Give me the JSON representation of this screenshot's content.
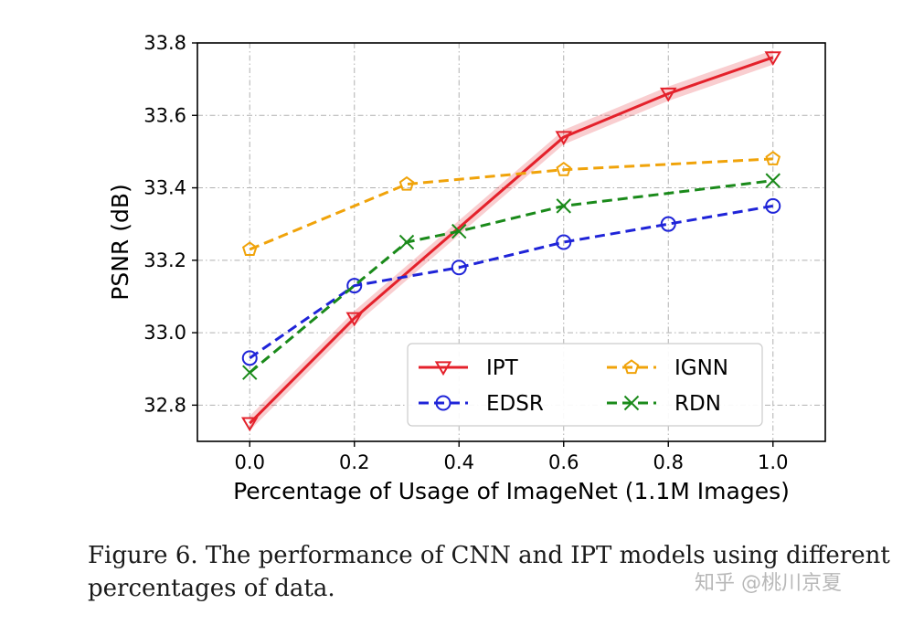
{
  "chart_data": {
    "type": "line",
    "xlabel": "Percentage of Usage of ImageNet (1.1M Images)",
    "ylabel": "PSNR (dB)",
    "xlim": [
      -0.1,
      1.1
    ],
    "ylim": [
      32.7,
      33.8
    ],
    "xticks": [
      "0.0",
      "0.2",
      "0.4",
      "0.6",
      "0.8",
      "1.0"
    ],
    "yticks": [
      "32.8",
      "33.0",
      "33.2",
      "33.4",
      "33.6",
      "33.8"
    ],
    "grid": true,
    "legend": "lower-right, 2 columns",
    "series": [
      {
        "name": "IPT",
        "color": "#e4212b",
        "marker": "triangle-down",
        "line": "solid",
        "band": 0.02,
        "x": [
          0.0,
          0.2,
          0.6,
          0.8,
          1.0
        ],
        "y": [
          32.75,
          33.04,
          33.54,
          33.66,
          33.76
        ]
      },
      {
        "name": "IGNN",
        "color": "#f0a30a",
        "marker": "pentagon",
        "line": "dashed",
        "x": [
          0.0,
          0.3,
          0.6,
          1.0
        ],
        "y": [
          33.23,
          33.41,
          33.45,
          33.48
        ]
      },
      {
        "name": "EDSR",
        "color": "#1f24d8",
        "marker": "circle",
        "line": "dashed",
        "x": [
          0.0,
          0.2,
          0.4,
          0.6,
          0.8,
          1.0
        ],
        "y": [
          32.93,
          33.13,
          33.18,
          33.25,
          33.3,
          33.35
        ]
      },
      {
        "name": "RDN",
        "color": "#1a8a1a",
        "marker": "x",
        "line": "dashed",
        "x": [
          0.0,
          0.3,
          0.4,
          0.6,
          1.0
        ],
        "y": [
          32.89,
          33.25,
          33.28,
          33.35,
          33.42
        ]
      }
    ]
  },
  "caption": "Figure 6. The performance of CNN and IPT models using different percentages of data.",
  "watermark": "知乎 @桃川京夏"
}
